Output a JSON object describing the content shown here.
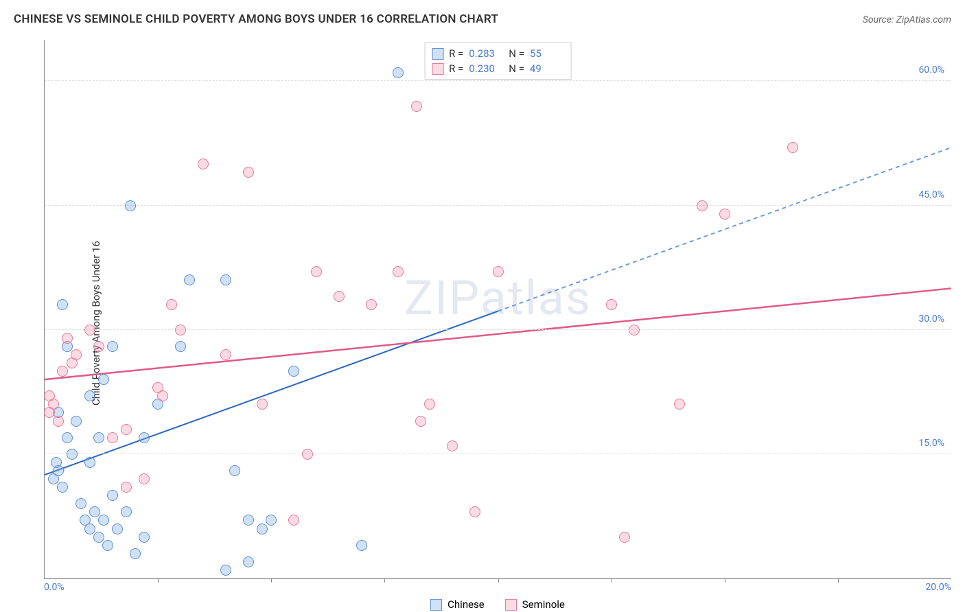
{
  "title": "CHINESE VS SEMINOLE CHILD POVERTY AMONG BOYS UNDER 16 CORRELATION CHART",
  "source": "Source: ZipAtlas.com",
  "watermark": "ZIPatlas",
  "y_axis_label": "Child Poverty Among Boys Under 16",
  "chart": {
    "type": "scatter",
    "xlim": [
      0,
      20
    ],
    "ylim": [
      0,
      65
    ],
    "y_ticks": [
      15.0,
      30.0,
      45.0,
      60.0
    ],
    "y_tick_labels": [
      "15.0%",
      "30.0%",
      "45.0%",
      "60.0%"
    ],
    "x_minor_ticks": [
      2.5,
      5.0,
      7.5,
      10.0,
      12.5,
      15.0,
      17.5
    ],
    "x_tick_labels": [
      {
        "pos": 0,
        "text": "0.0%",
        "align": "left"
      },
      {
        "pos": 20,
        "text": "20.0%",
        "align": "right"
      }
    ],
    "marker_radius": 8,
    "marker_border_width": 1,
    "background_color": "#ffffff",
    "grid_color": "#dddddd",
    "series": [
      {
        "name": "Chinese",
        "fill": "rgba(120,170,230,0.35)",
        "stroke": "#5b8fd6",
        "trend": {
          "x1": 0,
          "y1": 12.5,
          "x2": 20,
          "y2": 52,
          "solid_until_x": 10,
          "solid_color": "#2a66c4",
          "dash_color": "#6a9be0",
          "width": 2
        },
        "stats": {
          "R": "0.283",
          "N": "55"
        },
        "points": [
          [
            0.2,
            12
          ],
          [
            0.3,
            13
          ],
          [
            0.4,
            11
          ],
          [
            0.25,
            14
          ],
          [
            0.5,
            17
          ],
          [
            0.3,
            20
          ],
          [
            0.6,
            15
          ],
          [
            0.5,
            28
          ],
          [
            0.4,
            33
          ],
          [
            0.8,
            9
          ],
          [
            0.9,
            7
          ],
          [
            1.0,
            6
          ],
          [
            1.1,
            8
          ],
          [
            1.2,
            5
          ],
          [
            1.3,
            7
          ],
          [
            1.4,
            4
          ],
          [
            1.5,
            10
          ],
          [
            0.7,
            19
          ],
          [
            1.0,
            14
          ],
          [
            1.2,
            17
          ],
          [
            1.6,
            6
          ],
          [
            1.8,
            8
          ],
          [
            2.0,
            3
          ],
          [
            2.2,
            5
          ],
          [
            1.0,
            22
          ],
          [
            1.3,
            24
          ],
          [
            1.9,
            45
          ],
          [
            1.5,
            28
          ],
          [
            2.2,
            17
          ],
          [
            2.5,
            21
          ],
          [
            3.0,
            28
          ],
          [
            3.2,
            36
          ],
          [
            4.0,
            36
          ],
          [
            4.5,
            2
          ],
          [
            4.5,
            7
          ],
          [
            4.8,
            6
          ],
          [
            4.2,
            13
          ],
          [
            5.5,
            25
          ],
          [
            5.0,
            7
          ],
          [
            7.0,
            4
          ],
          [
            7.8,
            61
          ],
          [
            4.0,
            1
          ]
        ]
      },
      {
        "name": "Seminole",
        "fill": "rgba(240,150,175,0.35)",
        "stroke": "#e47a9b",
        "trend": {
          "x1": 0,
          "y1": 24,
          "x2": 20,
          "y2": 35,
          "solid_until_x": 20,
          "solid_color": "#e05a85",
          "width": 2.5
        },
        "stats": {
          "R": "0.230",
          "N": "49"
        },
        "points": [
          [
            0.1,
            20
          ],
          [
            0.2,
            21
          ],
          [
            0.3,
            19
          ],
          [
            0.1,
            22
          ],
          [
            0.4,
            25
          ],
          [
            0.6,
            26
          ],
          [
            0.5,
            29
          ],
          [
            0.7,
            27
          ],
          [
            1.0,
            30
          ],
          [
            1.2,
            28
          ],
          [
            1.8,
            11
          ],
          [
            1.5,
            17
          ],
          [
            1.8,
            18
          ],
          [
            2.2,
            12
          ],
          [
            2.5,
            23
          ],
          [
            2.6,
            22
          ],
          [
            2.8,
            33
          ],
          [
            3.0,
            30
          ],
          [
            3.5,
            50
          ],
          [
            4.5,
            49
          ],
          [
            4.0,
            27
          ],
          [
            4.8,
            21
          ],
          [
            5.5,
            7
          ],
          [
            5.8,
            15
          ],
          [
            6.0,
            37
          ],
          [
            6.5,
            34
          ],
          [
            7.2,
            33
          ],
          [
            7.8,
            37
          ],
          [
            8.2,
            57
          ],
          [
            8.3,
            19
          ],
          [
            8.5,
            21
          ],
          [
            9.0,
            16
          ],
          [
            9.5,
            8
          ],
          [
            10.0,
            37
          ],
          [
            12.5,
            33
          ],
          [
            12.8,
            5
          ],
          [
            13.0,
            30
          ],
          [
            14.0,
            21
          ],
          [
            14.5,
            45
          ],
          [
            15.0,
            44
          ],
          [
            16.5,
            52
          ]
        ]
      }
    ]
  },
  "legend": {
    "chinese": "Chinese",
    "seminole": "Seminole"
  },
  "stats_labels": {
    "R": "R =",
    "N": "N ="
  }
}
